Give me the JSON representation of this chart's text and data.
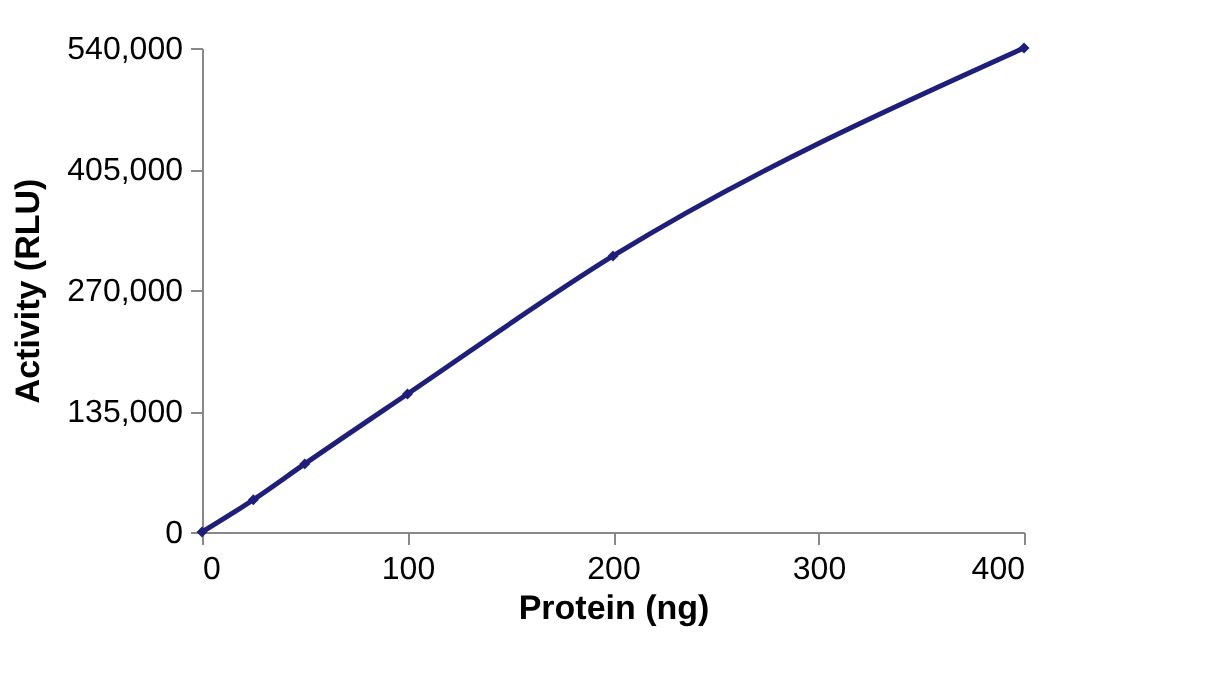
{
  "chart_data": {
    "type": "line",
    "xlabel": "Protein (ng)",
    "ylabel": "Activity (RLU)",
    "x": [
      0,
      25,
      50,
      100,
      200,
      400
    ],
    "series": [
      {
        "color": "#1f1f7a",
        "values": [
          0,
          36000,
          76000,
          154000,
          308000,
          540000
        ]
      }
    ],
    "xlim": [
      0,
      400
    ],
    "xticks": [
      0,
      100,
      200,
      300,
      400
    ],
    "ylim": [
      0,
      540000
    ],
    "yticks": [
      {
        "value": 0,
        "label": "0"
      },
      {
        "value": 135000,
        "label": "135,000"
      },
      {
        "value": 270000,
        "label": "270,000"
      },
      {
        "value": 405000,
        "label": "405,000"
      },
      {
        "value": 540000,
        "label": "540,000"
      }
    ],
    "grid": false,
    "marker": "diamond",
    "line_style": "solid"
  }
}
